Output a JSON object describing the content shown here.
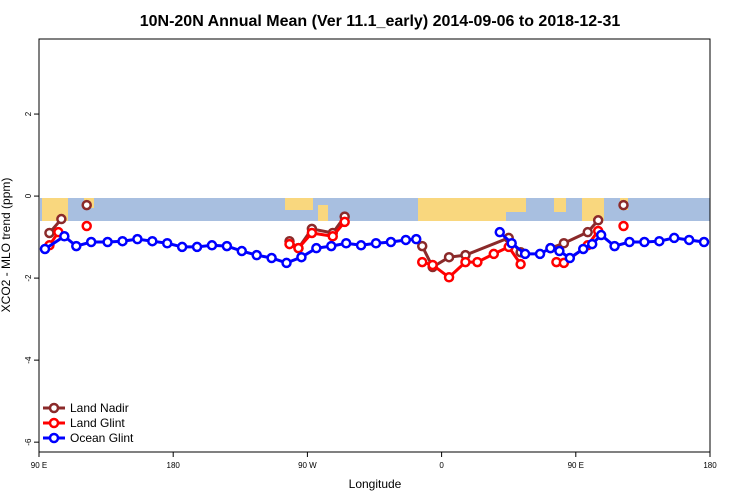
{
  "chart_data": {
    "type": "line",
    "title": "10N-20N Annual Mean (Ver 11.1_early)   2014-09-06 to 2018-12-31",
    "x_label": "Longitude",
    "y_label": "XCO2 - MLO trend (ppm)",
    "xlim": [
      90,
      540
    ],
    "ylim": [
      -6.24,
      3.83
    ],
    "xticks": [
      {
        "value": 90,
        "label": "90 E"
      },
      180,
      {
        "value": 270,
        "label": "90 W"
      },
      {
        "value": 360,
        "label": "0"
      },
      {
        "value": 450,
        "label": "90 E"
      },
      {
        "value": 540,
        "label": "180"
      }
    ],
    "yticks": [
      2,
      0,
      -2,
      -4,
      -6
    ],
    "legend": "bottom-left",
    "series": [
      {
        "name": "Land Nadir",
        "color": "#8b2a2a",
        "x": [
          97,
          105,
          null,
          122,
          null,
          258,
          264,
          273,
          287,
          295,
          null,
          347,
          354,
          365,
          376,
          405,
          413,
          null,
          433,
          442,
          458,
          465,
          null,
          482
        ],
        "values": [
          -0.9,
          -0.56,
          null,
          -0.22,
          null,
          -1.1,
          -1.27,
          -0.8,
          -0.9,
          -0.5,
          null,
          -1.22,
          -1.73,
          -1.49,
          -1.44,
          -1.02,
          -1.37,
          null,
          -1.27,
          -1.15,
          -0.88,
          -0.59,
          null,
          -0.22
        ]
      },
      {
        "name": "Land Glint",
        "color": "#ff0000",
        "x": [
          97,
          103,
          null,
          122,
          null,
          258,
          264,
          273,
          287,
          295,
          null,
          347,
          354,
          365,
          376,
          384,
          395,
          405,
          413,
          null,
          437,
          442,
          458,
          465,
          null,
          482
        ],
        "values": [
          -1.2,
          -0.88,
          null,
          -0.73,
          null,
          -1.17,
          -1.27,
          -0.9,
          -0.98,
          -0.63,
          null,
          -1.61,
          -1.68,
          -1.98,
          -1.61,
          -1.61,
          -1.41,
          -1.24,
          -1.66,
          null,
          -1.61,
          -1.63,
          -1.2,
          -0.85,
          null,
          -0.73
        ]
      },
      {
        "name": "Ocean Glint",
        "color": "#0000ff",
        "x": [
          94,
          107,
          115,
          125,
          136,
          146,
          156,
          166,
          176,
          186,
          196,
          206,
          216,
          226,
          236,
          246,
          256,
          266,
          276,
          286,
          296,
          306,
          316,
          326,
          336,
          343,
          null,
          399,
          407,
          416,
          426,
          433,
          439,
          446,
          455,
          461,
          467,
          476,
          486,
          496,
          506,
          516,
          526,
          536
        ],
        "values": [
          -1.29,
          -0.98,
          -1.22,
          -1.12,
          -1.12,
          -1.1,
          -1.05,
          -1.1,
          -1.15,
          -1.24,
          -1.24,
          -1.2,
          -1.22,
          -1.34,
          -1.44,
          -1.51,
          -1.63,
          -1.49,
          -1.27,
          -1.22,
          -1.15,
          -1.2,
          -1.15,
          -1.12,
          -1.07,
          -1.05,
          null,
          -0.88,
          -1.15,
          -1.41,
          -1.41,
          -1.27,
          -1.34,
          -1.51,
          -1.29,
          -1.17,
          -0.95,
          -1.22,
          -1.12,
          -1.12,
          -1.1,
          -1.02,
          -1.07,
          -1.12
        ]
      }
    ]
  }
}
